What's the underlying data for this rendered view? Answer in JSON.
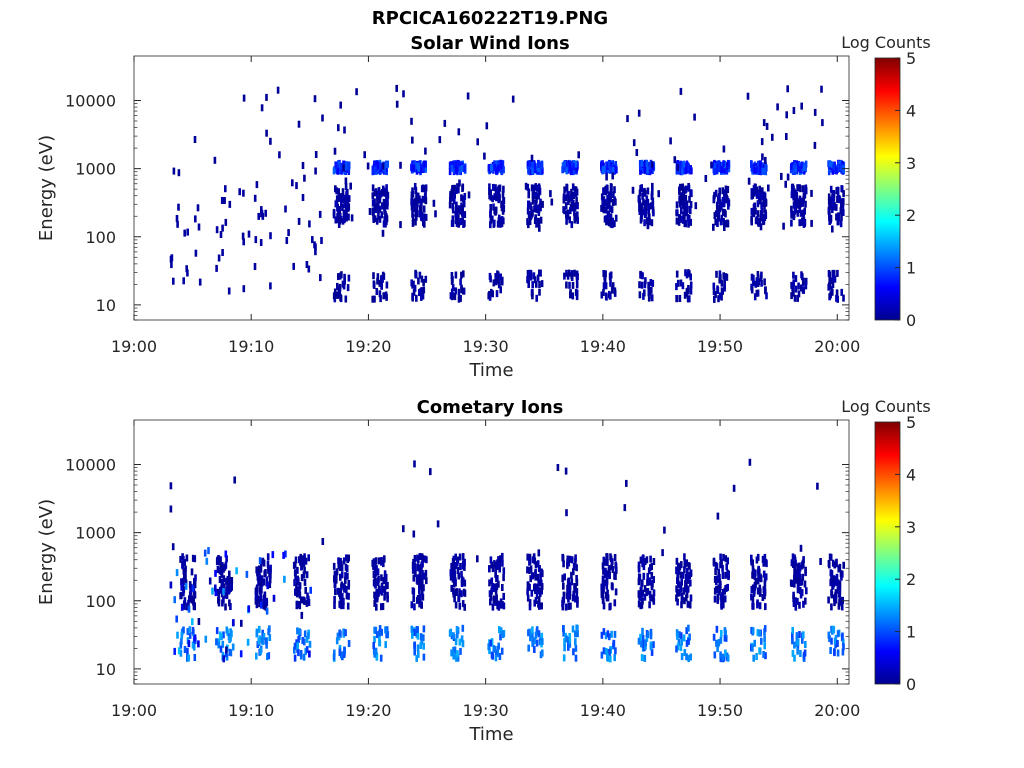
{
  "figure_title": "RPCICA160222T19.PNG",
  "colorbar_label": "Log Counts",
  "colormap": [
    "#00008f",
    "#0000ff",
    "#0080ff",
    "#00ffff",
    "#80ff80",
    "#ffff00",
    "#ff8000",
    "#ff0000",
    "#800000"
  ],
  "chart_data": [
    {
      "type": "heatmap",
      "title": "Solar Wind Ions",
      "xlabel": "Time",
      "ylabel": "Energy (eV)",
      "y_scale": "log",
      "ylim": [
        6,
        45000
      ],
      "xlim": [
        "19:00",
        "20:01"
      ],
      "x_ticks": [
        "19:00",
        "19:10",
        "19:20",
        "19:30",
        "19:40",
        "19:50",
        "20:00"
      ],
      "y_ticks": [
        "10",
        "100",
        "1000",
        "10000"
      ],
      "colorbar_ticks": [
        "0",
        "1",
        "2",
        "3",
        "4",
        "5"
      ],
      "clim": [
        0,
        5
      ],
      "grid": false,
      "pulse_times": [
        "19:17.6",
        "19:20.9",
        "19:24.2",
        "19:27.5",
        "19:30.8",
        "19:34.1",
        "19:37.1",
        "19:40.4",
        "19:43.6",
        "19:46.8",
        "19:50.0",
        "19:53.2",
        "19:56.6",
        "19:59.8"
      ],
      "bands": [
        {
          "energy_min_eV": 150,
          "energy_max_eV": 550,
          "log_counts": 0.1
        },
        {
          "energy_min_eV": 900,
          "energy_max_eV": 1200,
          "log_counts": 0.8
        },
        {
          "energy_min_eV": 12,
          "energy_max_eV": 30,
          "log_counts": 0.1
        }
      ],
      "early_activity": {
        "start": "19:03",
        "end": "19:16",
        "log_counts": 0.1
      }
    },
    {
      "type": "heatmap",
      "title": "Cometary Ions",
      "xlabel": "Time",
      "ylabel": "Energy (eV)",
      "y_scale": "log",
      "ylim": [
        6,
        45000
      ],
      "xlim": [
        "19:00",
        "20:01"
      ],
      "x_ticks": [
        "19:00",
        "19:10",
        "19:20",
        "19:30",
        "19:40",
        "19:50",
        "20:00"
      ],
      "y_ticks": [
        "10",
        "100",
        "1000",
        "10000"
      ],
      "colorbar_ticks": [
        "0",
        "1",
        "2",
        "3",
        "4",
        "5"
      ],
      "clim": [
        0,
        5
      ],
      "grid": false,
      "pulse_times": [
        "19:04.5",
        "19:07.6",
        "19:10.9",
        "19:14.2",
        "19:17.6",
        "19:20.9",
        "19:24.2",
        "19:27.5",
        "19:30.8",
        "19:34.1",
        "19:37.1",
        "19:40.4",
        "19:43.6",
        "19:46.8",
        "19:50.0",
        "19:53.2",
        "19:56.6",
        "19:59.8"
      ],
      "bands": [
        {
          "energy_min_eV": 14,
          "energy_max_eV": 40,
          "log_counts": 1.2
        },
        {
          "energy_min_eV": 80,
          "energy_max_eV": 450,
          "log_counts": 0.1
        }
      ],
      "early_activity": {
        "start": "19:03",
        "end": "19:16",
        "log_counts": 1.6
      }
    }
  ]
}
